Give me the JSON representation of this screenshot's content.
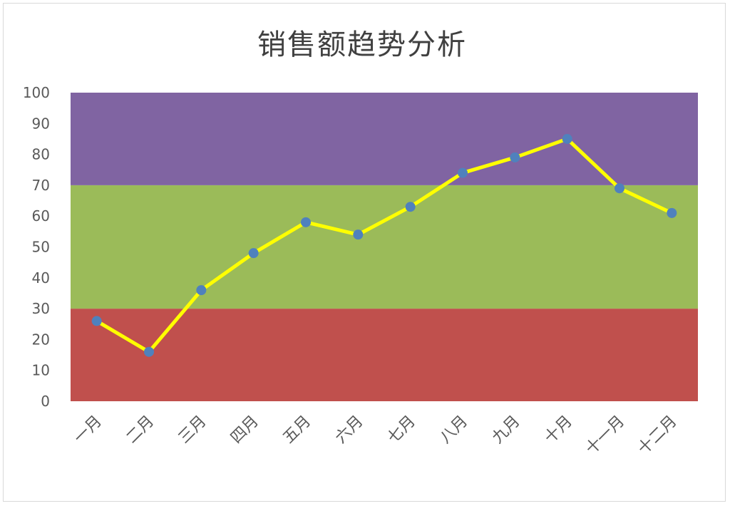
{
  "chart_data": {
    "type": "line",
    "title": "销售额趋势分析",
    "categories": [
      "一月",
      "二月",
      "三月",
      "四月",
      "五月",
      "六月",
      "七月",
      "八月",
      "九月",
      "十月",
      "十一月",
      "十二月"
    ],
    "series": [
      {
        "values": [
          26,
          16,
          36,
          48,
          58,
          54,
          63,
          74,
          79,
          85,
          69,
          61
        ]
      }
    ],
    "ylim": [
      0,
      100
    ],
    "yticks": [
      0,
      10,
      20,
      30,
      40,
      50,
      60,
      70,
      80,
      90,
      100
    ],
    "bands": [
      {
        "from": 0,
        "to": 30,
        "color": "#c0504d"
      },
      {
        "from": 30,
        "to": 70,
        "color": "#9bbb59"
      },
      {
        "from": 70,
        "to": 100,
        "color": "#8064a2"
      }
    ],
    "line_color": "#ffff00",
    "marker_color": "#4f81bd",
    "grid": false,
    "legend": "none"
  }
}
